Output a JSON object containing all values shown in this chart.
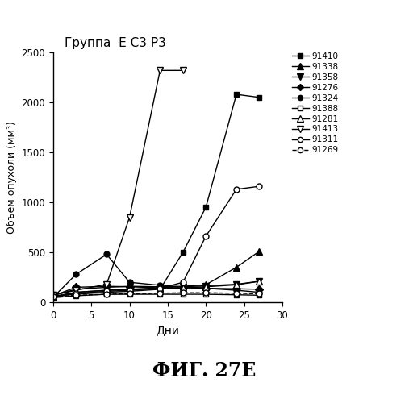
{
  "title": "Группа  Е С3 Р3",
  "xlabel": "Дни",
  "ylabel": "Объем опухоли (мм³)",
  "xlim": [
    0,
    30
  ],
  "ylim": [
    0,
    2500
  ],
  "xticks": [
    0,
    5,
    10,
    15,
    20,
    25,
    30
  ],
  "yticks": [
    0,
    500,
    1000,
    1500,
    2000,
    2500
  ],
  "fig_label": "ФИГ. 27Е",
  "series": [
    {
      "label": "91410",
      "marker": "s",
      "fillstyle": "full",
      "color": "#000000",
      "x": [
        0,
        3,
        7,
        10,
        14,
        17,
        20,
        24,
        27
      ],
      "y": [
        60,
        80,
        100,
        110,
        130,
        500,
        950,
        2080,
        2050
      ]
    },
    {
      "label": "91338",
      "marker": "^",
      "fillstyle": "full",
      "color": "#000000",
      "x": [
        0,
        3,
        7,
        10,
        14,
        17,
        20,
        24,
        27
      ],
      "y": [
        55,
        100,
        120,
        130,
        145,
        160,
        175,
        350,
        510
      ]
    },
    {
      "label": "91358",
      "marker": "v",
      "fillstyle": "full",
      "color": "#000000",
      "x": [
        0,
        3,
        7,
        10,
        14,
        17,
        20,
        24,
        27
      ],
      "y": [
        70,
        130,
        150,
        160,
        155,
        155,
        165,
        180,
        210
      ]
    },
    {
      "label": "91276",
      "marker": "D",
      "fillstyle": "full",
      "color": "#000000",
      "x": [
        0,
        3,
        7,
        10,
        14,
        17,
        20,
        24,
        27
      ],
      "y": [
        65,
        150,
        160,
        155,
        145,
        145,
        140,
        135,
        130
      ]
    },
    {
      "label": "91324",
      "marker": "o",
      "fillstyle": "full",
      "color": "#000000",
      "x": [
        0,
        3,
        7,
        10,
        14,
        17,
        20,
        24,
        27
      ],
      "y": [
        50,
        280,
        480,
        200,
        170,
        155,
        140,
        120,
        100
      ]
    },
    {
      "label": "91388",
      "marker": "s",
      "fillstyle": "none",
      "color": "#000000",
      "x": [
        0,
        3,
        7,
        10,
        14,
        17,
        20,
        24,
        27
      ],
      "y": [
        45,
        65,
        80,
        80,
        80,
        80,
        80,
        75,
        70
      ]
    },
    {
      "label": "91281",
      "marker": "^",
      "fillstyle": "none",
      "color": "#000000",
      "x": [
        0,
        3,
        7,
        10,
        14,
        17,
        20,
        24,
        27
      ],
      "y": [
        55,
        100,
        120,
        130,
        135,
        145,
        155,
        175,
        210
      ]
    },
    {
      "label": "91413",
      "marker": "v",
      "fillstyle": "none",
      "color": "#000000",
      "x": [
        0,
        3,
        7,
        10,
        14,
        17
      ],
      "y": [
        70,
        120,
        180,
        850,
        2320,
        2320
      ]
    },
    {
      "label": "91311",
      "marker": "o",
      "fillstyle": "none",
      "color": "#000000",
      "x": [
        0,
        3,
        7,
        10,
        14,
        17,
        20,
        24,
        27
      ],
      "y": [
        60,
        90,
        110,
        120,
        140,
        200,
        660,
        1130,
        1160
      ]
    },
    {
      "label": "91269",
      "marker": "o",
      "fillstyle": "none",
      "color": "#000000",
      "linestyle": "--",
      "x": [
        0,
        3,
        7,
        10,
        14,
        17,
        20,
        24,
        27
      ],
      "y": [
        55,
        70,
        80,
        85,
        90,
        95,
        95,
        90,
        85
      ]
    }
  ]
}
